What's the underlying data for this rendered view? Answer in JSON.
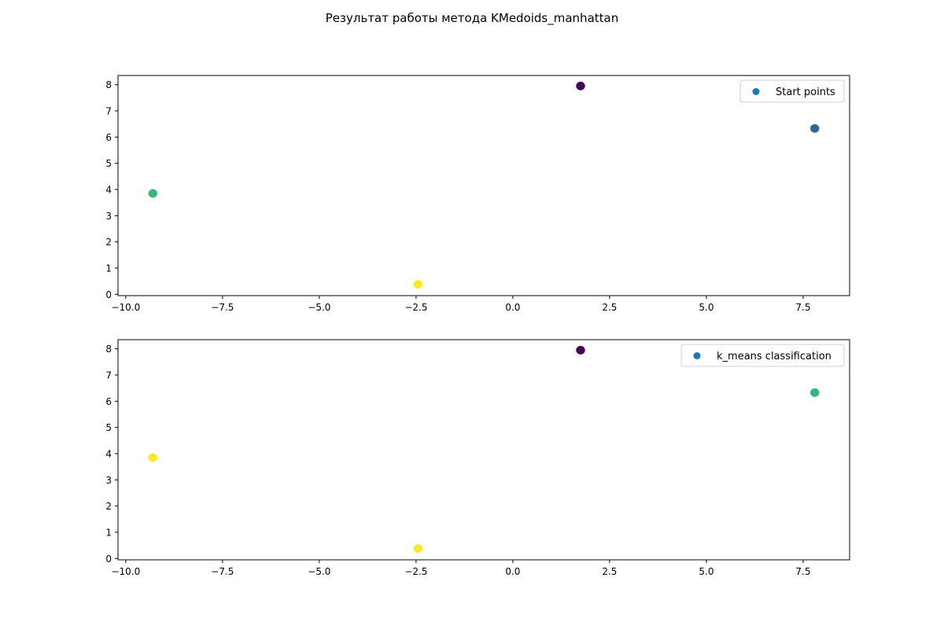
{
  "suptitle": "Результат работы метода KMedoids_manhattan",
  "colors": {
    "axis": "#000000",
    "legend_border": "#cccccc",
    "legend_marker": "#1f77b4"
  },
  "chart_data": [
    {
      "type": "scatter",
      "legend": "Start points",
      "legend_position": "upper right",
      "grid": false,
      "xlim": [
        -10.2,
        8.7
      ],
      "ylim": [
        -0.05,
        8.35
      ],
      "xticks": [
        -10.0,
        -7.5,
        -5.0,
        -2.5,
        0.0,
        2.5,
        5.0,
        7.5
      ],
      "xtick_labels": [
        "−10.0",
        "−7.5",
        "−5.0",
        "−2.5",
        "0.0",
        "2.5",
        "5.0",
        "7.5"
      ],
      "yticks": [
        0,
        1,
        2,
        3,
        4,
        5,
        6,
        7,
        8
      ],
      "ytick_labels": [
        "0",
        "1",
        "2",
        "3",
        "4",
        "5",
        "6",
        "7",
        "8"
      ],
      "points": [
        {
          "x": 1.75,
          "y": 7.95,
          "color": "#440154"
        },
        {
          "x": 7.8,
          "y": 6.33,
          "color": "#31688e"
        },
        {
          "x": -9.3,
          "y": 3.85,
          "color": "#35b779"
        },
        {
          "x": -2.45,
          "y": 0.38,
          "color": "#fde725"
        }
      ]
    },
    {
      "type": "scatter",
      "legend": "k_means classification",
      "legend_position": "upper right",
      "grid": false,
      "xlim": [
        -10.2,
        8.7
      ],
      "ylim": [
        -0.05,
        8.35
      ],
      "xticks": [
        -10.0,
        -7.5,
        -5.0,
        -2.5,
        0.0,
        2.5,
        5.0,
        7.5
      ],
      "xtick_labels": [
        "−10.0",
        "−7.5",
        "−5.0",
        "−2.5",
        "0.0",
        "2.5",
        "5.0",
        "7.5"
      ],
      "yticks": [
        0,
        1,
        2,
        3,
        4,
        5,
        6,
        7,
        8
      ],
      "ytick_labels": [
        "0",
        "1",
        "2",
        "3",
        "4",
        "5",
        "6",
        "7",
        "8"
      ],
      "points": [
        {
          "x": 1.75,
          "y": 7.95,
          "color": "#440154"
        },
        {
          "x": 7.8,
          "y": 6.33,
          "color": "#35b779"
        },
        {
          "x": -9.3,
          "y": 3.85,
          "color": "#fde725"
        },
        {
          "x": -2.45,
          "y": 0.38,
          "color": "#fde725"
        }
      ]
    }
  ]
}
